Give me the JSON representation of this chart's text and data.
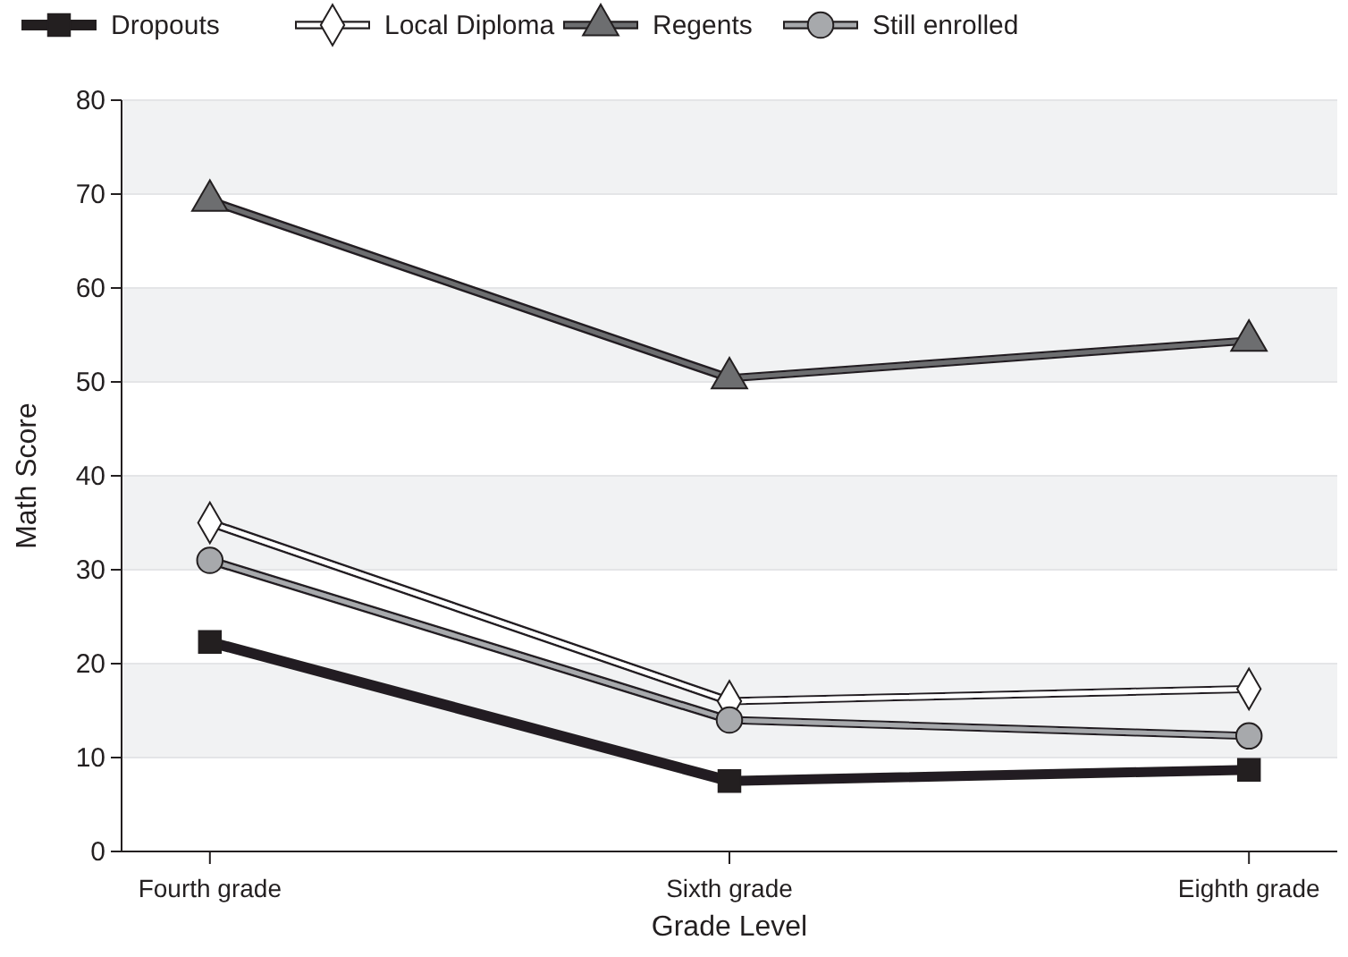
{
  "chart_data": {
    "type": "line",
    "xlabel": "Grade Level",
    "ylabel": "Math Score",
    "categories": [
      "Fourth grade",
      "Sixth grade",
      "Eighth grade"
    ],
    "series": [
      {
        "name": "Dropouts",
        "color": "#231f20",
        "marker": "square",
        "values": [
          22.3,
          7.5,
          8.7
        ]
      },
      {
        "name": "Local Diploma",
        "color": "#ffffff",
        "marker": "diamond",
        "values": [
          35,
          16,
          17.3
        ]
      },
      {
        "name": "Regents",
        "color": "#6d6e70",
        "marker": "triangle",
        "values": [
          69.3,
          50.4,
          54.4
        ]
      },
      {
        "name": "Still enrolled",
        "color": "#a7a9ac",
        "marker": "circle",
        "values": [
          31,
          14,
          12.3
        ]
      }
    ],
    "ylim": [
      0,
      80
    ],
    "yticks": [
      0,
      10,
      20,
      30,
      40,
      50,
      60,
      70,
      80
    ],
    "grid": "y",
    "legend": "top",
    "line_style": "solid"
  }
}
